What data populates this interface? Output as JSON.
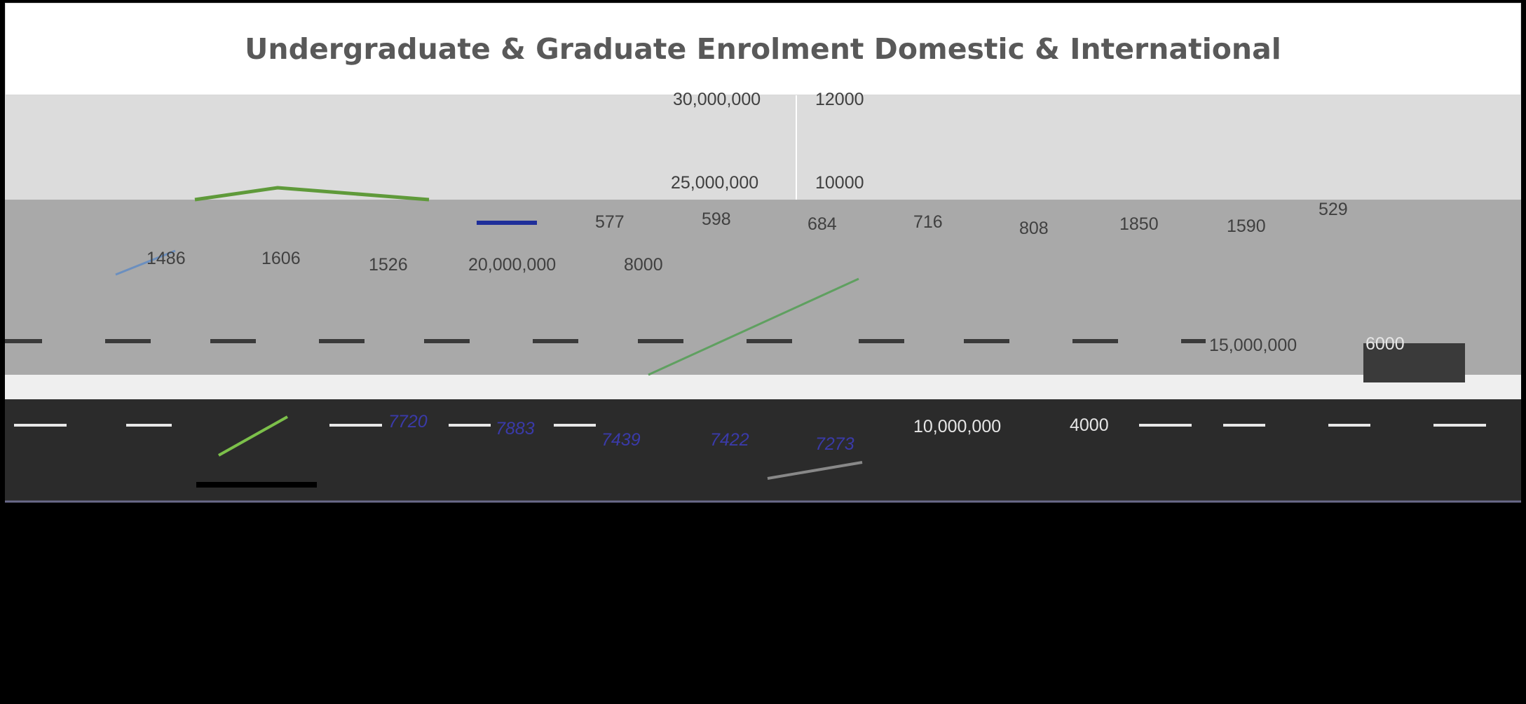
{
  "header": {
    "title": "Undergraduate & Graduate Enrolment Domestic & International"
  },
  "labels": [
    "30,000,000",
    "12000",
    "25,000,000",
    "10000",
    "529",
    "577",
    "598",
    "684",
    "716",
    "808",
    "1850",
    "1590",
    "1486",
    "1606",
    "1526",
    "20,000,000",
    "8000",
    "15,000,000",
    "6000",
    "7720",
    "7883",
    "7439",
    "7422",
    "7273",
    "10,000,000",
    "4000"
  ]
}
